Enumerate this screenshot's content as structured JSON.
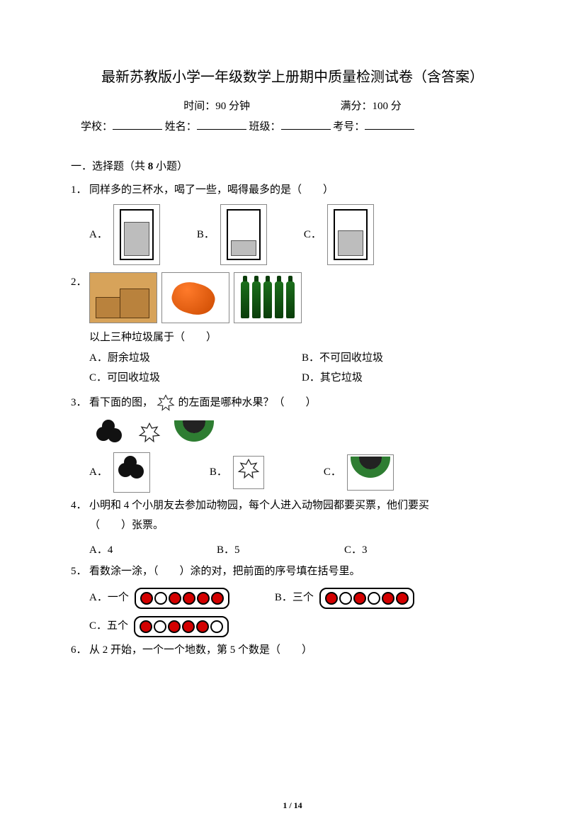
{
  "title": "最新苏教版小学一年级数学上册期中质量检测试卷（含答案）",
  "meta": {
    "time_label": "时间：",
    "time_value": "90 分钟",
    "score_label": "满分：",
    "score_value": "100 分"
  },
  "info": {
    "school": "学校：",
    "name": "姓名：",
    "class": "班级：",
    "exam_no": "考号："
  },
  "section1": {
    "head_prefix": "一．选择题（共 ",
    "head_bold": "8",
    "head_suffix": " 小题）"
  },
  "q1": {
    "num": "1．",
    "text": "同样多的三杯水，喝了一些，喝得最多的是（　　）",
    "opts": {
      "a": "A．",
      "b": "B．",
      "c": "C．"
    },
    "cup_fill": {
      "a": 48,
      "b": 22,
      "c": 36
    }
  },
  "q2": {
    "num": "2．",
    "tail": "以上三种垃圾属于（　　）",
    "opts": {
      "a": "A．厨余垃圾",
      "b": "B．不可回收垃圾",
      "c": "C．可回收垃圾",
      "d": "D．其它垃圾"
    }
  },
  "q3": {
    "num": "3．",
    "text_before": "看下面的图，",
    "text_after": "的左面是哪种水果？（　　）",
    "opts": {
      "a": "A．",
      "b": "B．",
      "c": "C．"
    }
  },
  "q4": {
    "num": "4．",
    "line1": "小明和 4 个小朋友去参加动物园，每个人进入动物园都要买票，他们要买",
    "line2": "（　　）张票。",
    "opts": {
      "a": "A．4",
      "b": "B．5",
      "c": "C．3"
    }
  },
  "q5": {
    "num": "5．",
    "text": "看数涂一涂，（　　）涂的对，把前面的序号填在括号里。",
    "opts": {
      "a": "A．一个",
      "b": "B．三个",
      "c": "C．五个"
    },
    "circles": {
      "a": [
        1,
        0,
        1,
        1,
        1,
        1
      ],
      "b": [
        1,
        0,
        1,
        0,
        1,
        1
      ],
      "c": [
        1,
        0,
        1,
        1,
        1,
        0
      ]
    }
  },
  "q6": {
    "num": "6．",
    "text": "从 2 开始，一个一个地数，第 5 个数是（　　）"
  },
  "page": "1 / 14",
  "colors": {
    "red": "#d30000",
    "gray": "#bdbdbd"
  }
}
